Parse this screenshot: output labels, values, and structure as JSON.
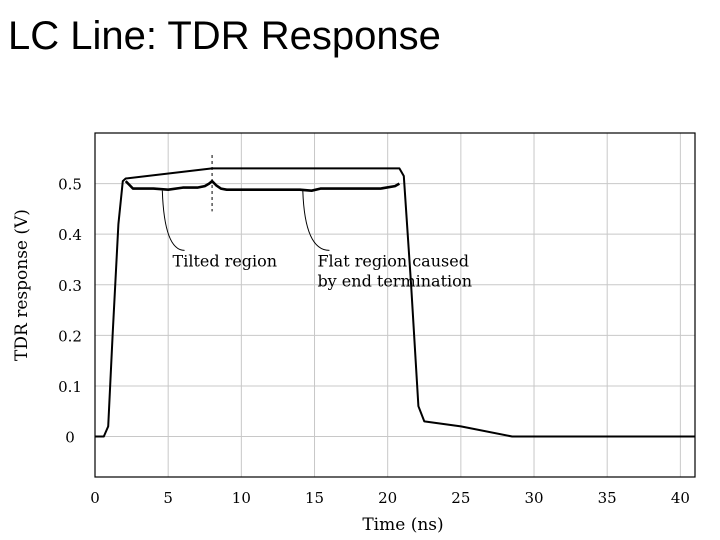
{
  "page_title": "LC Line: TDR Response",
  "chart_data": {
    "type": "line",
    "xlabel": "Time (ns)",
    "ylabel": "TDR response (V)",
    "xlim": [
      0,
      41
    ],
    "ylim": [
      -0.08,
      0.6
    ],
    "xticks": [
      0,
      5,
      10,
      15,
      20,
      25,
      30,
      35,
      40
    ],
    "yticks": [
      0,
      0.1,
      0.2,
      0.3,
      0.4,
      0.5
    ],
    "ytick_labels": [
      "0",
      "0.1",
      "0.2",
      "0.3",
      "0.4",
      "0.5"
    ],
    "grid": true,
    "series": [
      {
        "x": [
          0,
          0.6,
          0.9,
          1.2,
          1.6,
          1.9,
          2.1,
          8,
          20.8,
          21.1,
          21.6,
          22.1,
          22.5,
          25,
          28.5,
          41
        ],
        "y": [
          0,
          0,
          0.02,
          0.2,
          0.42,
          0.505,
          0.51,
          0.53,
          0.53,
          0.515,
          0.3,
          0.06,
          0.03,
          0.02,
          0,
          0
        ]
      },
      {
        "x": [
          2.1,
          2.6,
          3,
          4,
          5,
          6,
          7,
          7.5,
          7.8,
          8,
          8.3,
          8.6,
          9,
          10,
          12,
          14,
          14.8,
          15.4,
          16,
          18,
          19.5,
          20.5,
          20.8
        ],
        "y": [
          0.505,
          0.49,
          0.49,
          0.49,
          0.488,
          0.492,
          0.492,
          0.495,
          0.5,
          0.505,
          0.496,
          0.49,
          0.488,
          0.488,
          0.488,
          0.488,
          0.486,
          0.49,
          0.49,
          0.49,
          0.49,
          0.495,
          0.5
        ]
      }
    ],
    "annotations": [
      {
        "lines": [
          "Tilted region"
        ],
        "x": 5.3,
        "y": 0.36,
        "target_x": 4.6,
        "target_y": 0.49
      },
      {
        "lines": [
          "Flat region caused",
          "by end termination"
        ],
        "x": 15.2,
        "y": 0.36,
        "target_x": 14.2,
        "target_y": 0.49
      }
    ]
  }
}
